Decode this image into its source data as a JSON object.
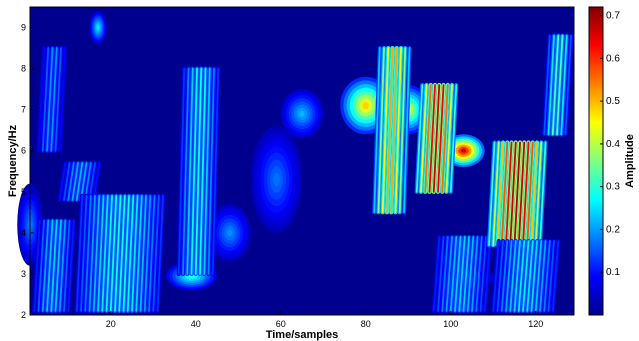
{
  "chart_data": {
    "type": "heatmap",
    "title": "",
    "xlabel": "Time/samples",
    "ylabel": "Frequency/Hz",
    "xlim": [
      1,
      129
    ],
    "ylim": [
      2,
      9.5
    ],
    "x_ticks": [
      "20",
      "40",
      "60",
      "80",
      "100",
      "120"
    ],
    "y_ticks": [
      "2",
      "3",
      "4",
      "5",
      "6",
      "7",
      "8",
      "9"
    ],
    "colorbar": {
      "label": "Amplitude",
      "range": [
        0,
        0.72
      ],
      "ticks": [
        "0.1",
        "0.2",
        "0.3",
        "0.4",
        "0.5",
        "0.6",
        "0.7"
      ],
      "colormap": "jet"
    },
    "grid": false,
    "background_amplitude": 0.0,
    "blobs": [
      {
        "t": 39,
        "f": 2.95,
        "amplitude": 0.3,
        "t_width": 6,
        "f_width": 0.35
      },
      {
        "t": 103,
        "f": 2.9,
        "amplitude": 0.27,
        "t_width": 7,
        "f_width": 0.3
      },
      {
        "t": 80,
        "f": 7.1,
        "amplitude": 0.48,
        "t_width": 6,
        "f_width": 0.7
      },
      {
        "t": 90,
        "f": 7.0,
        "amplitude": 0.42,
        "t_width": 5,
        "f_width": 0.6
      },
      {
        "t": 103,
        "f": 6.0,
        "amplitude": 0.66,
        "t_width": 5,
        "f_width": 0.4
      },
      {
        "t": 65,
        "f": 6.9,
        "amplitude": 0.22,
        "t_width": 5,
        "f_width": 0.6
      },
      {
        "t": 59,
        "f": 5.3,
        "amplitude": 0.17,
        "t_width": 6,
        "f_width": 1.3
      },
      {
        "t": 48,
        "f": 4.0,
        "amplitude": 0.19,
        "t_width": 5,
        "f_width": 0.7
      },
      {
        "t": 17,
        "f": 9.0,
        "amplitude": 0.26,
        "t_width": 2,
        "f_width": 0.4
      },
      {
        "t": 1,
        "f": 4.2,
        "amplitude": 0.18,
        "t_width": 3,
        "f_width": 1.0
      }
    ],
    "stripe_groups": [
      {
        "t_start": 2,
        "t_end": 10,
        "f_low": 2.1,
        "f_high": 4.3,
        "amplitude": 0.24
      },
      {
        "t_start": 3,
        "t_end": 8,
        "f_low": 6.0,
        "f_high": 8.5,
        "amplitude": 0.2
      },
      {
        "t_start": 8,
        "t_end": 16,
        "f_low": 4.8,
        "f_high": 5.7,
        "amplitude": 0.22
      },
      {
        "t_start": 12,
        "t_end": 31,
        "f_low": 2.1,
        "f_high": 4.9,
        "amplitude": 0.28
      },
      {
        "t_start": 36,
        "t_end": 44,
        "f_low": 3.0,
        "f_high": 8.0,
        "amplitude": 0.28
      },
      {
        "t_start": 82,
        "t_end": 89,
        "f_low": 4.5,
        "f_high": 8.5,
        "amplitude": 0.52
      },
      {
        "t_start": 92,
        "t_end": 100,
        "f_low": 5.0,
        "f_high": 7.6,
        "amplitude": 0.66
      },
      {
        "t_start": 96,
        "t_end": 108,
        "f_low": 2.1,
        "f_high": 3.9,
        "amplitude": 0.24
      },
      {
        "t_start": 109,
        "t_end": 121,
        "f_low": 3.7,
        "f_high": 6.2,
        "amplitude": 0.68
      },
      {
        "t_start": 110,
        "t_end": 124,
        "f_low": 2.1,
        "f_high": 3.8,
        "amplitude": 0.26
      },
      {
        "t_start": 122,
        "t_end": 127,
        "f_low": 6.4,
        "f_high": 8.8,
        "amplitude": 0.33
      }
    ]
  }
}
